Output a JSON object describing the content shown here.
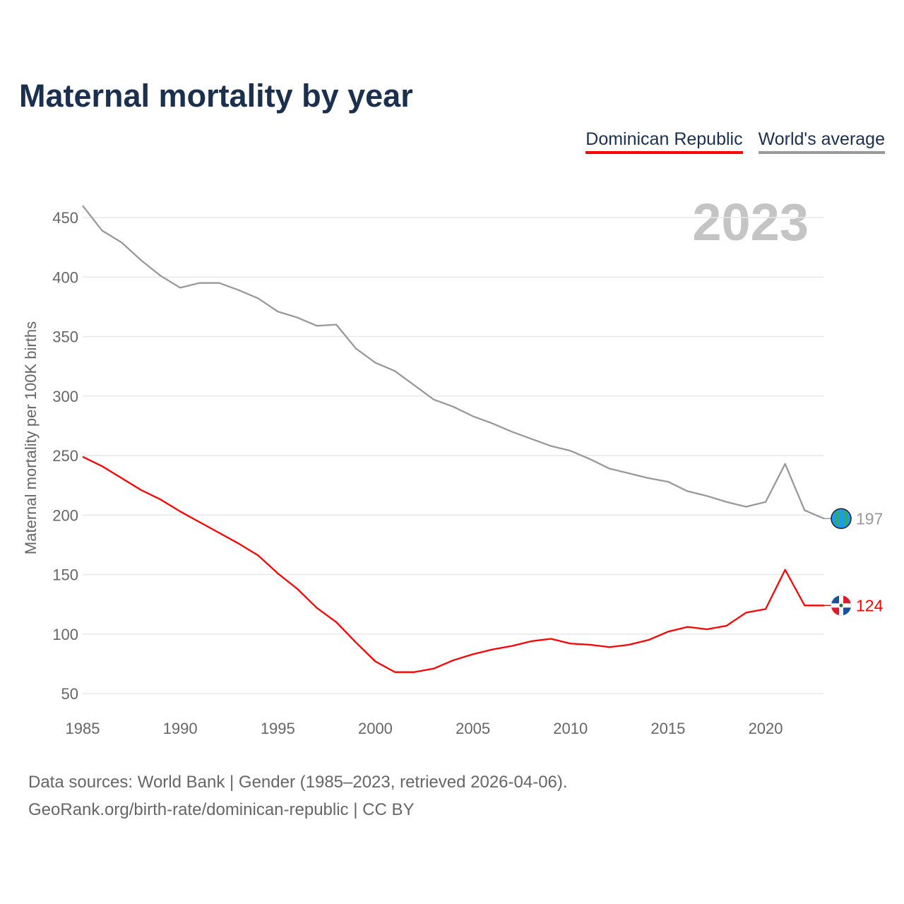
{
  "title": "Maternal mortality by year",
  "legend": [
    "Dominican Republic",
    "World's average"
  ],
  "year_label": "2023",
  "source_line1": "Data sources: World Bank | Gender (1985–2023, retrieved 2026-04-06).",
  "source_line2": "GeoRank.org/birth-rate/dominican-republic | CC BY",
  "chart_data": {
    "type": "line",
    "title": "Maternal mortality by year",
    "xlabel": "",
    "ylabel": "Maternal mortality per 100K births",
    "xlim": [
      1985,
      2023
    ],
    "ylim": [
      40,
      465
    ],
    "xticks": [
      1985,
      1990,
      1995,
      2000,
      2005,
      2010,
      2015,
      2020
    ],
    "yticks": [
      50,
      100,
      150,
      200,
      250,
      300,
      350,
      400,
      450
    ],
    "grid": true,
    "legend_position": "top-right",
    "x": [
      1985,
      1986,
      1987,
      1988,
      1989,
      1990,
      1991,
      1992,
      1993,
      1994,
      1995,
      1996,
      1997,
      1998,
      1999,
      2000,
      2001,
      2002,
      2003,
      2004,
      2005,
      2006,
      2007,
      2008,
      2009,
      2010,
      2011,
      2012,
      2013,
      2014,
      2015,
      2016,
      2017,
      2018,
      2019,
      2020,
      2021,
      2022,
      2023
    ],
    "series": [
      {
        "name": "Dominican Republic",
        "color": "#ff0000",
        "end_label": "124",
        "end_icon": "dominican-flag-icon",
        "values": [
          249,
          241,
          231,
          221,
          213,
          203,
          194,
          185,
          176,
          166,
          151,
          138,
          122,
          110,
          93,
          77,
          68,
          68,
          71,
          78,
          83,
          87,
          90,
          94,
          96,
          92,
          91,
          89,
          91,
          95,
          102,
          106,
          104,
          107,
          118,
          121,
          154,
          124,
          124
        ]
      },
      {
        "name": "World's average",
        "color": "#999999",
        "end_label": "197",
        "end_icon": "globe-icon",
        "values": [
          460,
          439,
          429,
          414,
          401,
          391,
          395,
          395,
          389,
          382,
          371,
          366,
          359,
          360,
          340,
          328,
          321,
          309,
          297,
          291,
          283,
          277,
          270,
          264,
          258,
          254,
          247,
          239,
          235,
          231,
          228,
          220,
          216,
          211,
          207,
          211,
          243,
          204,
          197
        ]
      }
    ]
  }
}
